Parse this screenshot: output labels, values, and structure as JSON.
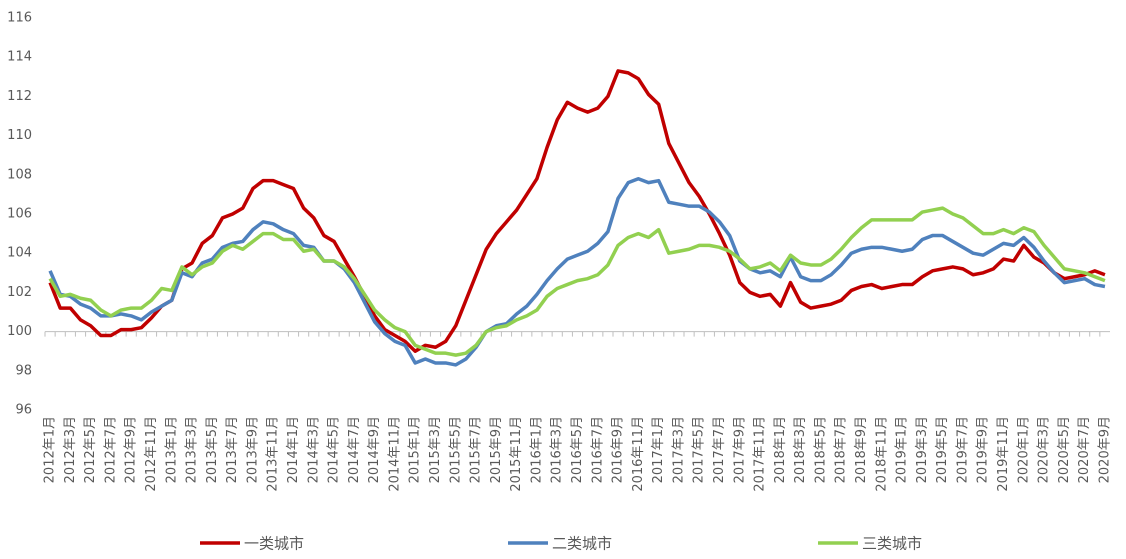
{
  "chart_data": {
    "type": "line",
    "categories": [
      "2012年1月",
      null,
      "2012年3月",
      null,
      "2012年5月",
      null,
      "2012年7月",
      null,
      "2012年9月",
      null,
      "2012年11月",
      null,
      "2013年1月",
      null,
      "2013年3月",
      null,
      "2013年5月",
      null,
      "2013年7月",
      null,
      "2013年9月",
      null,
      "2013年11月",
      null,
      "2014年1月",
      null,
      "2014年3月",
      null,
      "2014年5月",
      null,
      "2014年7月",
      null,
      "2014年9月",
      null,
      "2014年11月",
      null,
      "2015年1月",
      null,
      "2015年3月",
      null,
      "2015年5月",
      null,
      "2015年7月",
      null,
      "2015年9月",
      null,
      "2015年11月",
      null,
      "2016年1月",
      null,
      "2016年3月",
      null,
      "2016年5月",
      null,
      "2016年7月",
      null,
      "2016年9月",
      null,
      "2016年11月",
      null,
      "2017年1月",
      null,
      "2017年3月",
      null,
      "2017年5月",
      null,
      "2017年7月",
      null,
      "2017年9月",
      null,
      "2017年11月",
      null,
      "2018年1月",
      null,
      "2018年3月",
      null,
      "2018年5月",
      null,
      "2018年7月",
      null,
      "2018年9月",
      null,
      "2018年11月",
      null,
      "2019年1月",
      null,
      "2019年3月",
      null,
      "2019年5月",
      null,
      "2019年7月",
      null,
      "2019年9月",
      null,
      "2019年11月",
      null,
      "2020年1月",
      null,
      "2020年3月",
      null,
      "2020年5月",
      null,
      "2020年7月",
      null,
      "2020年9月"
    ],
    "series": [
      {
        "name": "一类城市",
        "color": "#c00000",
        "values": [
          102.5,
          101.2,
          101.2,
          100.6,
          100.3,
          99.8,
          99.8,
          100.1,
          100.1,
          100.2,
          100.7,
          101.3,
          101.6,
          103.2,
          103.5,
          104.5,
          104.9,
          105.8,
          106.0,
          106.3,
          107.3,
          107.7,
          107.7,
          107.5,
          107.3,
          106.3,
          105.8,
          104.9,
          104.6,
          103.7,
          102.8,
          101.8,
          100.8,
          100.1,
          99.8,
          99.5,
          99.0,
          99.3,
          99.2,
          99.5,
          100.3,
          101.6,
          102.9,
          104.2,
          105.0,
          105.6,
          106.2,
          107.0,
          107.8,
          109.4,
          110.8,
          111.7,
          111.4,
          111.2,
          111.4,
          112.0,
          113.3,
          113.2,
          112.9,
          112.1,
          111.6,
          109.6,
          108.6,
          107.6,
          106.9,
          106.0,
          105.0,
          103.9,
          102.5,
          102.0,
          101.8,
          101.9,
          101.3,
          102.5,
          101.5,
          101.2,
          101.3,
          101.4,
          101.6,
          102.1,
          102.3,
          102.4,
          102.2,
          102.3,
          102.4,
          102.4,
          102.8,
          103.1,
          103.2,
          103.3,
          103.2,
          102.9,
          103.0,
          103.2,
          103.7,
          103.6,
          104.4,
          103.8,
          103.5,
          103.0,
          102.7,
          102.8,
          102.9,
          103.1,
          102.9
        ]
      },
      {
        "name": "二类城市",
        "color": "#4f81bd",
        "values": [
          103.1,
          101.9,
          101.8,
          101.4,
          101.2,
          100.8,
          100.8,
          100.9,
          100.8,
          100.6,
          101.0,
          101.3,
          101.6,
          103.0,
          102.8,
          103.5,
          103.7,
          104.3,
          104.5,
          104.6,
          105.2,
          105.6,
          105.5,
          105.2,
          105.0,
          104.4,
          104.3,
          103.6,
          103.6,
          103.2,
          102.5,
          101.5,
          100.5,
          99.9,
          99.5,
          99.3,
          98.4,
          98.6,
          98.4,
          98.4,
          98.3,
          98.6,
          99.2,
          100.0,
          100.3,
          100.4,
          100.9,
          101.3,
          101.9,
          102.6,
          103.2,
          103.7,
          103.9,
          104.1,
          104.5,
          105.1,
          106.8,
          107.6,
          107.8,
          107.6,
          107.7,
          106.6,
          106.5,
          106.4,
          106.4,
          106.1,
          105.6,
          104.9,
          103.6,
          103.2,
          103.0,
          103.1,
          102.8,
          103.8,
          102.8,
          102.6,
          102.6,
          102.9,
          103.4,
          104.0,
          104.2,
          104.3,
          104.3,
          104.2,
          104.1,
          104.2,
          104.7,
          104.9,
          104.9,
          104.6,
          104.3,
          104.0,
          103.9,
          104.2,
          104.5,
          104.4,
          104.8,
          104.3,
          103.6,
          103.0,
          102.5,
          102.6,
          102.7,
          102.4,
          102.3
        ]
      },
      {
        "name": "三类城市",
        "color": "#92d050",
        "values": [
          102.7,
          101.8,
          101.9,
          101.7,
          101.6,
          101.1,
          100.8,
          101.1,
          101.2,
          101.2,
          101.6,
          102.2,
          102.1,
          103.3,
          102.9,
          103.3,
          103.5,
          104.1,
          104.4,
          104.2,
          104.6,
          105.0,
          105.0,
          104.7,
          104.7,
          104.1,
          104.2,
          103.6,
          103.6,
          103.3,
          102.7,
          101.9,
          101.1,
          100.6,
          100.2,
          100.0,
          99.3,
          99.1,
          98.9,
          98.9,
          98.8,
          98.9,
          99.3,
          100.0,
          100.2,
          100.3,
          100.6,
          100.8,
          101.1,
          101.8,
          102.2,
          102.4,
          102.6,
          102.7,
          102.9,
          103.4,
          104.4,
          104.8,
          105.0,
          104.8,
          105.2,
          104.0,
          104.1,
          104.2,
          104.4,
          104.4,
          104.3,
          104.1,
          103.7,
          103.2,
          103.3,
          103.5,
          103.1,
          103.9,
          103.5,
          103.4,
          103.4,
          103.7,
          104.2,
          104.8,
          105.3,
          105.7,
          105.7,
          105.7,
          105.7,
          105.7,
          106.1,
          106.2,
          106.3,
          106.0,
          105.8,
          105.4,
          105.0,
          105.0,
          105.2,
          105.0,
          105.3,
          105.1,
          104.4,
          103.8,
          103.2,
          103.1,
          103.0,
          102.8,
          102.6
        ]
      }
    ],
    "ylim": [
      96,
      116
    ],
    "yticks": [
      96,
      98,
      100,
      102,
      104,
      106,
      108,
      110,
      112,
      114,
      116
    ],
    "xaxis_crosses": 100,
    "grid": false,
    "legend": "bottom"
  }
}
